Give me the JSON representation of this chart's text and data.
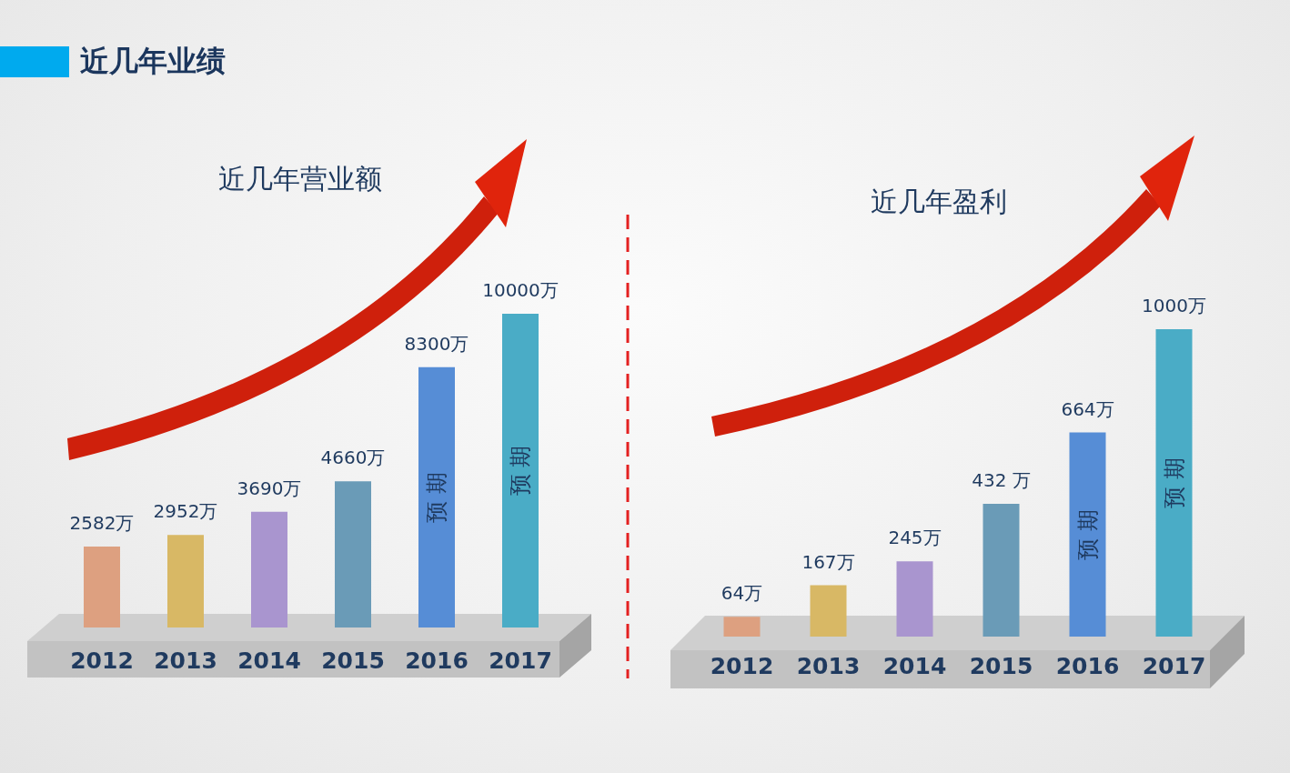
{
  "chart_data": [
    {
      "type": "bar",
      "title": "近几年营业额",
      "categories": [
        "2012",
        "2013",
        "2014",
        "2015",
        "2016",
        "2017"
      ],
      "values": [
        2582,
        2952,
        3690,
        4660,
        8300,
        10000
      ],
      "colors": [
        "#dda080",
        "#d8b865",
        "#a995cf",
        "#6a9bb7",
        "#568dd6",
        "#4aacc6"
      ],
      "value_labels": [
        "2582万",
        "2952万",
        "3690万",
        "4660万",
        "8300万",
        "10000万"
      ],
      "tick_labels": "x",
      "annotations": [
        "近几年业绩",
        "预 期",
        "预 期"
      ]
    },
    {
      "type": "bar",
      "title": "近几年盈利",
      "categories": [
        "2012",
        "2013",
        "2014",
        "2015",
        "2016",
        "2017"
      ],
      "values": [
        64,
        167,
        245,
        432,
        664,
        1000
      ],
      "colors": [
        "#dda080",
        "#d8b865",
        "#a995cf",
        "#6a9bb7",
        "#568dd6",
        "#4aacc6"
      ],
      "value_labels": [
        "64万",
        "167万",
        "245万",
        "432 万",
        "664万",
        "1000万"
      ],
      "tick_labels": "x",
      "annotations": [
        "预 期",
        "预 期"
      ]
    }
  ]
}
